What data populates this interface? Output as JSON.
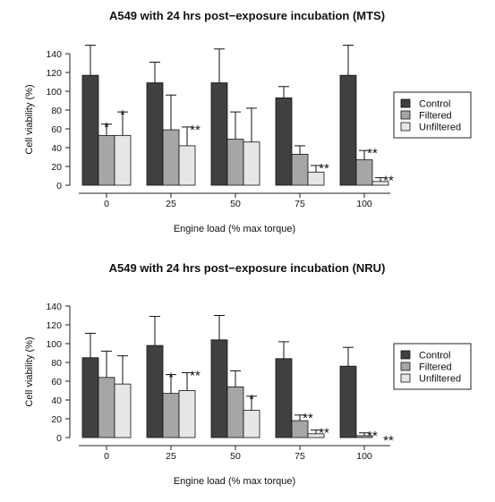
{
  "chart_data": [
    {
      "type": "bar",
      "title": "A549 with 24 hrs post−exposure incubation (MTS)",
      "xlabel": "Engine load (% max torque)",
      "ylabel": "Cell viability (%)",
      "ylim": [
        0,
        140
      ],
      "yticks": [
        "0",
        "20",
        "40",
        "60",
        "80",
        "100",
        "120",
        "140"
      ],
      "categories": [
        "0",
        "25",
        "50",
        "75",
        "100"
      ],
      "legend_position": "right",
      "series": [
        {
          "name": "Control",
          "color": "#404040",
          "values": [
            117,
            109,
            109,
            93,
            117
          ],
          "errors": [
            32,
            22,
            36,
            12,
            32
          ],
          "sig": [
            "",
            "",
            "",
            "",
            ""
          ]
        },
        {
          "name": "Filtered",
          "color": "#a6a6a6",
          "values": [
            53,
            59,
            49,
            33,
            27
          ],
          "errors": [
            12,
            37,
            29,
            9,
            10
          ],
          "sig": [
            "*",
            "",
            "",
            "",
            "**"
          ]
        },
        {
          "name": "Unfiltered",
          "color": "#e6e6e6",
          "values": [
            53,
            42,
            46,
            14,
            4
          ],
          "errors": [
            25,
            20,
            36,
            7,
            4
          ],
          "sig": [
            "*",
            "**",
            "",
            "**",
            "**"
          ]
        }
      ]
    },
    {
      "type": "bar",
      "title": "A549 with 24 hrs post−exposure incubation (NRU)",
      "xlabel": "Engine load (% max torque)",
      "ylabel": "Cell viability (%)",
      "ylim": [
        0,
        140
      ],
      "yticks": [
        "0",
        "20",
        "40",
        "60",
        "80",
        "100",
        "120",
        "140"
      ],
      "categories": [
        "0",
        "25",
        "50",
        "75",
        "100"
      ],
      "legend_position": "right",
      "series": [
        {
          "name": "Control",
          "color": "#404040",
          "values": [
            85,
            98,
            104,
            84,
            76
          ],
          "errors": [
            26,
            31,
            26,
            18,
            20
          ],
          "sig": [
            "",
            "",
            "",
            "",
            ""
          ]
        },
        {
          "name": "Filtered",
          "color": "#a6a6a6",
          "values": [
            64,
            47,
            54,
            18,
            2
          ],
          "errors": [
            28,
            20,
            17,
            6,
            3
          ],
          "sig": [
            "",
            "*",
            "",
            "**",
            "**"
          ]
        },
        {
          "name": "Unfiltered",
          "color": "#e6e6e6",
          "values": [
            57,
            50,
            29,
            4,
            0
          ],
          "errors": [
            30,
            19,
            15,
            4,
            0
          ],
          "sig": [
            "",
            "**",
            "*",
            "**",
            "**"
          ]
        }
      ]
    }
  ]
}
